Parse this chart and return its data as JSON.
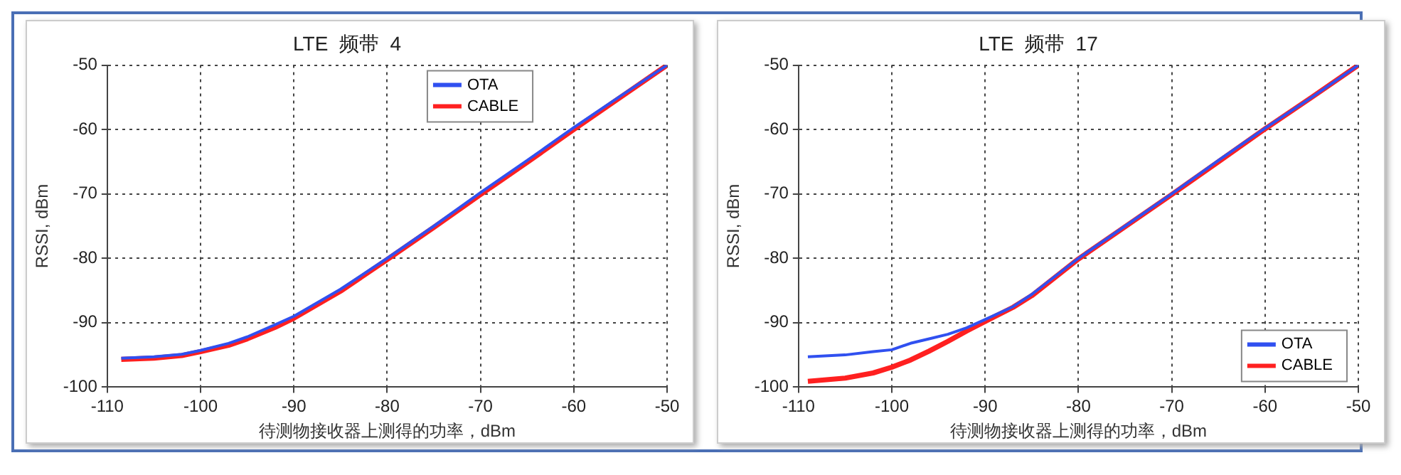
{
  "chart_data": [
    {
      "type": "line",
      "title": "LTE  频带  4",
      "xlabel": "待测物接收器上测得的功率，dBm",
      "ylabel": "RSSI, dBm",
      "xlim": [
        -110,
        -50
      ],
      "ylim": [
        -100,
        -50
      ],
      "xticks": [
        -110,
        -100,
        -90,
        -80,
        -70,
        -60,
        -50
      ],
      "yticks": [
        -100,
        -90,
        -80,
        -70,
        -60,
        -50
      ],
      "grid": true,
      "legend": "top right",
      "line_style": "solid",
      "marker": "none",
      "series": [
        {
          "name": "OTA",
          "color": "#3050f0",
          "x": [
            -108.5,
            -105,
            -102,
            -100,
            -97,
            -95,
            -92,
            -90,
            -85,
            -80,
            -75,
            -70,
            -65,
            -60,
            -55,
            -50
          ],
          "values": [
            -95.5,
            -95.3,
            -94.9,
            -94.3,
            -93.2,
            -92.2,
            -90.3,
            -89,
            -84.8,
            -80,
            -75,
            -69.8,
            -64.8,
            -59.7,
            -54.8,
            -50
          ]
        },
        {
          "name": "CABLE",
          "color": "#ff2020",
          "x": [
            -108.5,
            -105,
            -102,
            -100,
            -97,
            -95,
            -92,
            -90,
            -85,
            -80,
            -75,
            -70,
            -65,
            -60,
            -55,
            -50
          ],
          "values": [
            -95.7,
            -95.5,
            -95.1,
            -94.5,
            -93.5,
            -92.5,
            -90.7,
            -89.3,
            -85.1,
            -80.2,
            -75.2,
            -70.1,
            -65.1,
            -60,
            -55,
            -50
          ]
        }
      ]
    },
    {
      "type": "line",
      "title": "LTE  频带  17",
      "xlabel": "待测物接收器上测得的功率，dBm",
      "ylabel": "RSSI, dBm",
      "xlim": [
        -110,
        -50
      ],
      "ylim": [
        -100,
        -50
      ],
      "xticks": [
        -110,
        -100,
        -90,
        -80,
        -70,
        -60,
        -50
      ],
      "yticks": [
        -100,
        -90,
        -80,
        -70,
        -60,
        -50
      ],
      "grid": true,
      "legend": "bottom right",
      "line_style": "solid",
      "marker": "none",
      "series": [
        {
          "name": "OTA",
          "color": "#3050f0",
          "x": [
            -109,
            -105,
            -102,
            -100,
            -98,
            -96,
            -94,
            -92,
            -90,
            -87,
            -85,
            -80,
            -75,
            -70,
            -65,
            -60,
            -55,
            -50
          ],
          "values": [
            -95.3,
            -95,
            -94.5,
            -94.2,
            -93.2,
            -92.5,
            -91.8,
            -90.8,
            -89.5,
            -87.5,
            -85.6,
            -80,
            -75,
            -70,
            -64.8,
            -59.8,
            -55,
            -50
          ]
        },
        {
          "name": "CABLE",
          "color": "#ff2020",
          "x": [
            -109,
            -105,
            -102,
            -100,
            -98,
            -96,
            -94,
            -92,
            -90,
            -87,
            -85,
            -80,
            -75,
            -70,
            -65,
            -60,
            -55,
            -50
          ],
          "values": [
            -99.1,
            -98.6,
            -97.8,
            -96.9,
            -95.8,
            -94.4,
            -92.9,
            -91.3,
            -89.8,
            -87.6,
            -85.8,
            -80.1,
            -75.1,
            -70.1,
            -65,
            -59.9,
            -55,
            -50
          ]
        }
      ]
    }
  ]
}
